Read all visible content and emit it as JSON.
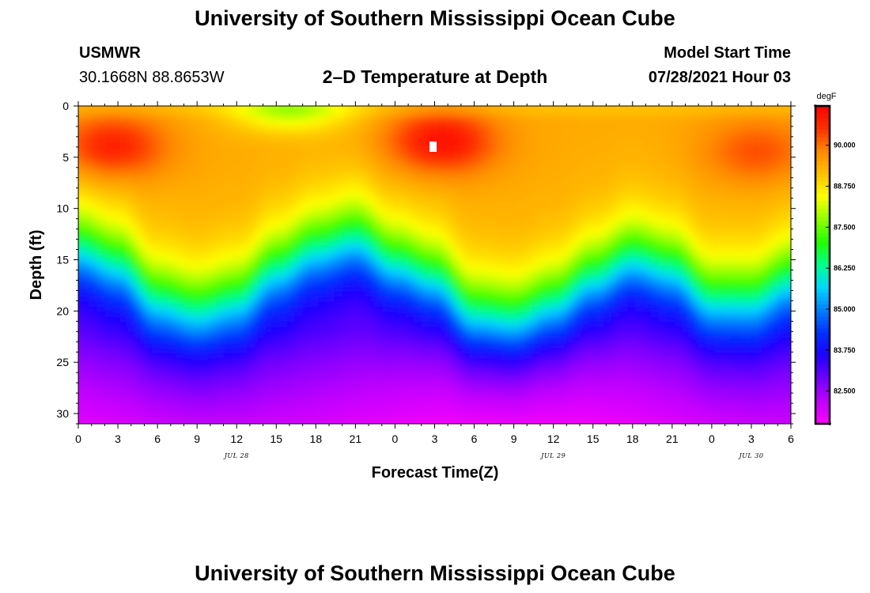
{
  "header": {
    "title": "University of Southern Mississippi Ocean Cube",
    "station": "USMWR",
    "coords": "30.1668N  88.8653W",
    "chart_title": "2–D Temperature at Depth",
    "model_label": "Model Start Time",
    "model_time": "07/28/2021 Hour 03"
  },
  "footer": {
    "title": "University of Southern Mississippi Ocean Cube"
  },
  "chart_data": {
    "type": "heatmap",
    "title": "2–D Temperature at Depth",
    "xlabel": "Forecast Time(Z)",
    "ylabel": "Depth (ft)",
    "x_hours": [
      0,
      3,
      6,
      9,
      12,
      15,
      18,
      21,
      24,
      27,
      30,
      33,
      36,
      39,
      42,
      45,
      48,
      51,
      54
    ],
    "x_tick_labels": [
      "0",
      "3",
      "6",
      "9",
      "12",
      "15",
      "18",
      "21",
      "0",
      "3",
      "6",
      "9",
      "12",
      "15",
      "18",
      "21",
      "0",
      "3",
      "6"
    ],
    "xlim": [
      0,
      54
    ],
    "y_tick_values": [
      0,
      5,
      10,
      15,
      20,
      25,
      30
    ],
    "y_tick_labels": [
      "0",
      "5",
      "10",
      "15",
      "20",
      "25",
      "30"
    ],
    "ylim": [
      0,
      31
    ],
    "date_labels": [
      {
        "text": "JUL 28",
        "hour": 12
      },
      {
        "text": "JUL 29",
        "hour": 36
      },
      {
        "text": "JUL 30",
        "hour": 51
      }
    ],
    "colorbar": {
      "unit": "degF",
      "range": [
        81.5,
        91.2
      ],
      "tick_values": [
        90.0,
        88.75,
        87.5,
        86.25,
        85.0,
        83.75,
        82.5
      ],
      "tick_labels": [
        "90.000",
        "88.750",
        "87.500",
        "86.250",
        "85.000",
        "83.750",
        "82.500"
      ],
      "colors": [
        "#ff00ff",
        "#c000ff",
        "#7000ff",
        "#2000ff",
        "#0030ff",
        "#0080ff",
        "#00d8ff",
        "#00ff90",
        "#20ff00",
        "#90ff00",
        "#ffff00",
        "#ffc000",
        "#ff8800",
        "#ff3000",
        "#ff0000"
      ]
    },
    "thermocline_depth_ft": [
      9,
      10.5,
      14,
      15,
      14,
      11,
      9,
      8,
      10.5,
      12,
      15.5,
      16,
      14.5,
      12,
      10,
      11,
      14,
      14,
      12
    ],
    "surface_warm_peaks": [
      {
        "hour": 2.5,
        "depth_ft": 4,
        "temp_f": 90.8
      },
      {
        "hour": 27.5,
        "depth_ft": 3.5,
        "temp_f": 91.0
      },
      {
        "hour": 51.5,
        "depth_ft": 4.5,
        "temp_f": 90.3
      }
    ],
    "near_surface_cool_spot": {
      "hour": 16,
      "depth_ft": 0.5,
      "temp_f": 88.0
    },
    "bottom_temp_range_f": [
      81.8,
      82.8
    ]
  }
}
